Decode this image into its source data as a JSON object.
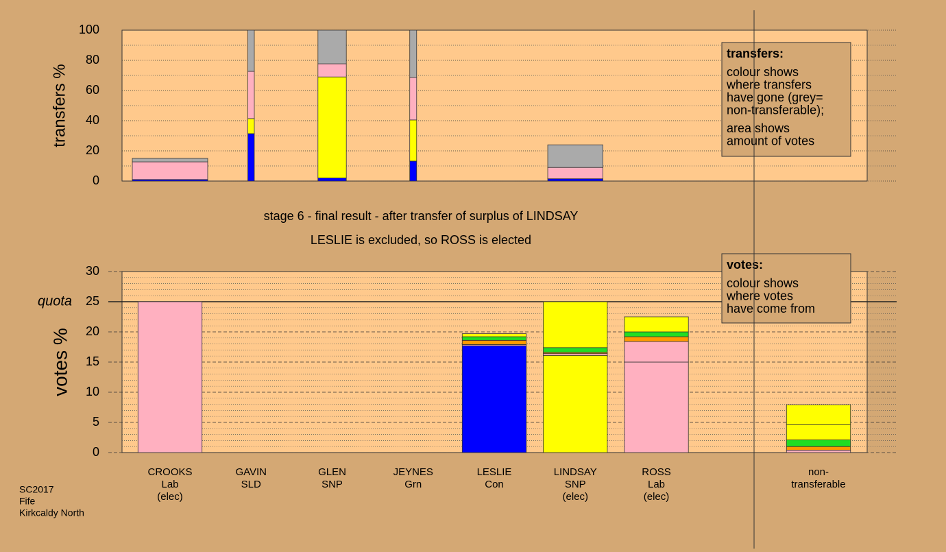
{
  "chart_data": [
    {
      "type": "bar",
      "stacked": true,
      "ylabel": "transfers %",
      "ylim": [
        0,
        100
      ],
      "yticks": [
        0,
        20,
        40,
        60,
        80,
        100
      ],
      "minor_yticks": [
        10,
        30,
        50,
        70,
        90
      ],
      "categories": [
        [
          "CROOKS",
          "Lab",
          "(elec)"
        ],
        [
          "GAVIN",
          "SLD"
        ],
        [
          "GLEN",
          "SNP"
        ],
        [
          "JEYNES",
          "Grn"
        ],
        [
          "LESLIE",
          "Con"
        ],
        [
          "LINDSAY",
          "SNP",
          "(elec)"
        ],
        [
          "ROSS",
          "Lab",
          "(elec)"
        ],
        null,
        [
          "non-",
          "transferable"
        ]
      ],
      "widths": [
        0.93,
        0.08,
        0.35,
        0.085,
        0,
        0.68,
        0,
        0,
        0
      ],
      "series": [
        {
          "color": "#0000ff",
          "values": [
            1,
            31.4,
            2,
            13.2,
            0,
            1.5,
            0,
            0,
            0
          ]
        },
        {
          "color": "#ffff00",
          "values": [
            0,
            10,
            67,
            27.3,
            0,
            0,
            0,
            0,
            0
          ]
        },
        {
          "color": "#ffb0c0",
          "values": [
            11.7,
            31.3,
            8.7,
            28.1,
            0,
            7.5,
            0,
            0,
            0
          ]
        },
        {
          "color": "#aaaaaa",
          "values": [
            2.3,
            27.3,
            22.3,
            31.4,
            0,
            15,
            0,
            0,
            0
          ]
        }
      ],
      "annotation": {
        "title": "transfers:",
        "lines": [
          [
            "colour shows",
            "where transfers",
            "have gone (grey=",
            "non-transferable);"
          ],
          [
            "area shows",
            "amount of votes"
          ]
        ]
      }
    },
    {
      "type": "bar",
      "stacked": true,
      "title": "stage 6 - final result - after transfer of surplus of LINDSAY",
      "subtitle": "LESLIE is excluded, so ROSS is elected",
      "ylabel": "votes %",
      "ylim": [
        0,
        30
      ],
      "yticks": [
        0,
        5,
        10,
        15,
        20,
        25,
        30
      ],
      "minor_yticks": [
        1,
        2,
        3,
        4,
        6,
        7,
        8,
        9,
        11,
        12,
        13,
        14,
        16,
        17,
        18,
        19,
        21,
        22,
        23,
        24,
        26,
        27,
        28,
        29
      ],
      "reference_line": {
        "label": "quota",
        "value": 25
      },
      "categories": [
        [
          "CROOKS",
          "Lab",
          "(elec)"
        ],
        [
          "GAVIN",
          "SLD"
        ],
        [
          "GLEN",
          "SNP"
        ],
        [
          "JEYNES",
          "Grn"
        ],
        [
          "LESLIE",
          "Con"
        ],
        [
          "LINDSAY",
          "SNP",
          "(elec)"
        ],
        [
          "ROSS",
          "Lab",
          "(elec)"
        ],
        null,
        [
          "non-",
          "transferable"
        ]
      ],
      "series": [
        {
          "color": "#0000ff",
          "values": [
            0,
            0,
            0,
            0,
            17.7,
            0,
            0,
            0,
            0
          ]
        },
        {
          "color": "#ffb0c0",
          "values": [
            25,
            0,
            0,
            0,
            0,
            0,
            15,
            0,
            0
          ]
        },
        {
          "color": "#ffff00",
          "values": [
            0,
            0,
            0,
            0,
            0,
            16.1,
            0,
            0,
            0
          ]
        },
        {
          "color": "#ffb0c0",
          "values": [
            0,
            0,
            0,
            0,
            0.2,
            0.3,
            3.4,
            0,
            0.4
          ]
        },
        {
          "color": "#ff9900",
          "values": [
            0,
            0,
            0,
            0,
            0.7,
            0.2,
            0.8,
            0,
            0.6
          ]
        },
        {
          "color": "#22dd22",
          "values": [
            0,
            0,
            0,
            0,
            0.6,
            0.8,
            0.8,
            0,
            1.1
          ]
        },
        {
          "color": "#ffff00",
          "values": [
            0,
            0,
            0,
            0,
            0.5,
            7.6,
            2.5,
            0,
            2.5
          ]
        },
        {
          "color": "#ffff00",
          "values": [
            0,
            0,
            0,
            0,
            0,
            0,
            0,
            0,
            3.3
          ]
        }
      ],
      "annotation": {
        "title": "votes:",
        "lines": [
          [
            "colour shows",
            "where votes",
            "have come from"
          ]
        ]
      }
    }
  ],
  "footer": [
    "SC2017",
    "Fife",
    "Kirkcaldy North"
  ]
}
